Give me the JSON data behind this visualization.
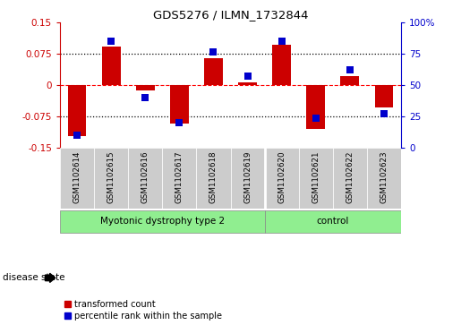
{
  "title": "GDS5276 / ILMN_1732844",
  "samples": [
    "GSM1102614",
    "GSM1102615",
    "GSM1102616",
    "GSM1102617",
    "GSM1102618",
    "GSM1102619",
    "GSM1102620",
    "GSM1102621",
    "GSM1102622",
    "GSM1102623"
  ],
  "red_values": [
    -0.122,
    0.093,
    -0.012,
    -0.092,
    0.065,
    0.008,
    0.098,
    -0.105,
    0.022,
    -0.053
  ],
  "blue_values": [
    10,
    85,
    40,
    20,
    77,
    57,
    85,
    24,
    62,
    27
  ],
  "groups": [
    {
      "label": "Myotonic dystrophy type 2",
      "n": 6,
      "color": "#90EE90"
    },
    {
      "label": "control",
      "n": 4,
      "color": "#90EE90"
    }
  ],
  "disease_state_label": "disease state",
  "ylim_left": [
    -0.15,
    0.15
  ],
  "ylim_right": [
    0,
    100
  ],
  "yticks_left": [
    -0.15,
    -0.075,
    0,
    0.075,
    0.15
  ],
  "yticks_right": [
    0,
    25,
    50,
    75,
    100
  ],
  "ytick_labels_left": [
    "-0.15",
    "-0.075",
    "0",
    "0.075",
    "0.15"
  ],
  "ytick_labels_right": [
    "0",
    "25",
    "50",
    "75",
    "100%"
  ],
  "red_color": "#CC0000",
  "blue_color": "#0000CC",
  "bar_width": 0.55,
  "dot_size": 35,
  "legend_red": "transformed count",
  "legend_blue": "percentile rank within the sample",
  "bg_color": "#FFFFFF",
  "label_area_color": "#CCCCCC",
  "separator_idx": 6
}
